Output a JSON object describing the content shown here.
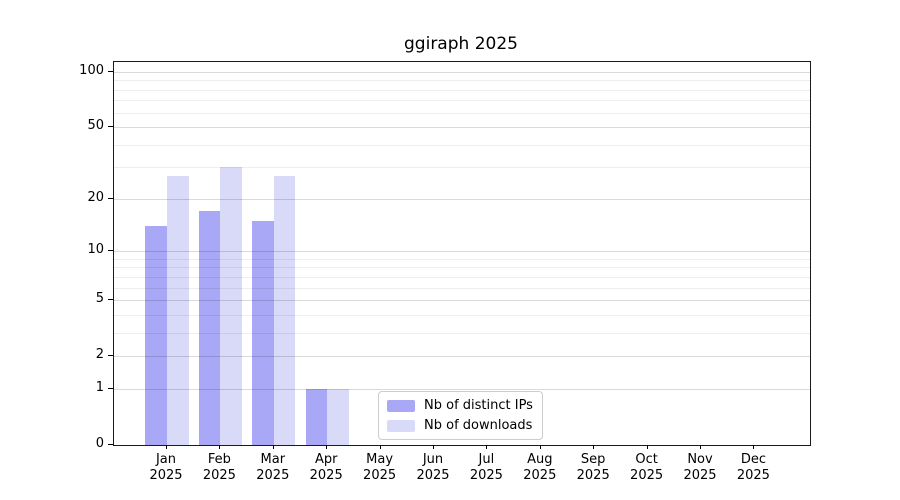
{
  "chart_data": {
    "type": "bar",
    "title": "ggiraph 2025",
    "x_categories": [
      "Jan",
      "Feb",
      "Mar",
      "Apr",
      "May",
      "Jun",
      "Jul",
      "Aug",
      "Sep",
      "Oct",
      "Nov",
      "Dec"
    ],
    "x_year": "2025",
    "series": [
      {
        "name": "Nb of distinct IPs",
        "color": "#a8a8f6",
        "values": [
          14,
          17,
          15,
          1,
          0,
          0,
          0,
          0,
          0,
          0,
          0,
          0
        ]
      },
      {
        "name": "Nb of downloads",
        "color": "#d9d9f8",
        "values": [
          27,
          30,
          27,
          1,
          0,
          0,
          0,
          0,
          0,
          0,
          0,
          0
        ]
      }
    ],
    "y_scale": "log1p",
    "ylim": [
      0,
      100
    ],
    "y_major_ticks": [
      0,
      1,
      2,
      5,
      10,
      20,
      50,
      100
    ],
    "y_minor_gridline_values": [
      3,
      4,
      6,
      7,
      8,
      9,
      30,
      40,
      60,
      70,
      80,
      90
    ],
    "grid": "horizontal",
    "legend_position": "inside-bottom-center",
    "xlabel": "",
    "ylabel": ""
  }
}
